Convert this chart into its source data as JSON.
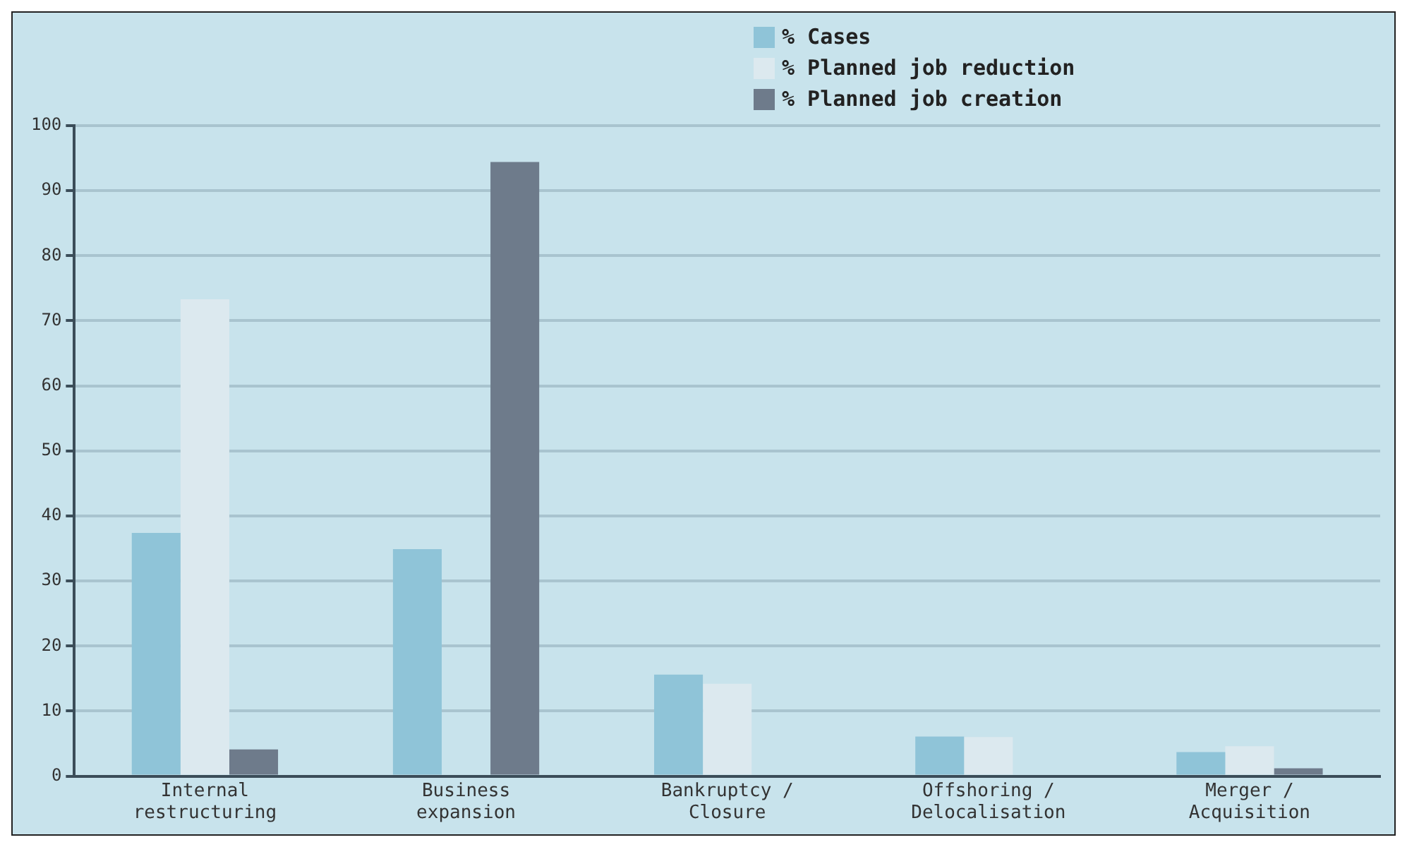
{
  "chart_data": {
    "type": "bar",
    "categories": [
      "Internal\nrestructuring",
      "Business\nexpansion",
      "Bankruptcy /\nClosure",
      "Offshoring /\nDelocalisation",
      "Merger /\nAcquisition"
    ],
    "series": [
      {
        "name": "% Cases",
        "color": "#8fc4d8",
        "values": [
          37.4,
          34.9,
          15.6,
          6.1,
          3.7
        ]
      },
      {
        "name": "% Planned job reduction",
        "color": "#dce9ef",
        "values": [
          73.3,
          null,
          14.2,
          6.0,
          4.6
        ]
      },
      {
        "name": "% Planned job creation",
        "color": "#6e7b8b",
        "values": [
          4.1,
          94.4,
          null,
          null,
          1.2
        ]
      }
    ],
    "ylim": [
      0,
      100
    ],
    "yticks": [
      0,
      10,
      20,
      30,
      40,
      50,
      60,
      70,
      80,
      90,
      100
    ],
    "grid": "y",
    "legend": "top"
  }
}
